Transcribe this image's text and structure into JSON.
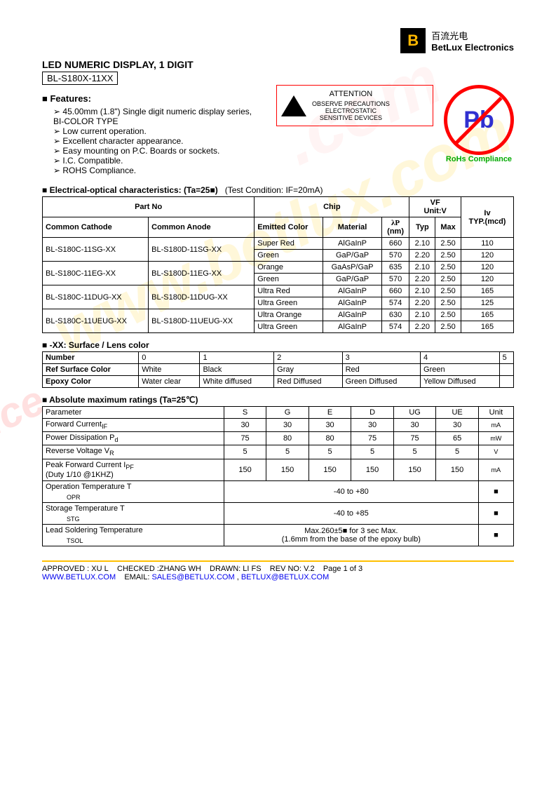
{
  "company": {
    "cn": "百流光电",
    "en": "BetLux Electronics"
  },
  "title": "LED NUMERIC DISPLAY, 1 DIGIT",
  "partNo": "BL-S180X-11XX",
  "featuresTitle": "Features:",
  "features": [
    "45.00mm (1.8\") Single digit numeric display series, BI-COLOR TYPE",
    "Low current operation.",
    "Excellent character appearance.",
    "Easy mounting on P.C. Boards or sockets.",
    "I.C. Compatible.",
    "ROHS Compliance."
  ],
  "esd": {
    "title": "ATTENTION",
    "line1": "OBSERVE PRECAUTIONS",
    "line2": "ELECTROSTATIC",
    "line3": "SENSITIVE DEVICES"
  },
  "pb": {
    "symbol": "Pb",
    "label": "RoHs Compliance"
  },
  "table1": {
    "title": "Electrical-optical characteristics: (Ta=25■)",
    "cond": "(Test Condition: IF=20mA)",
    "headers": {
      "partNo": "Part No",
      "chip": "Chip",
      "vf": "VF",
      "vfUnit": "Unit:V",
      "iv": "Iv",
      "cc": "Common Cathode",
      "ca": "Common Anode",
      "ec": "Emitted Color",
      "mat": "Material",
      "wl": "λP",
      "wlUnit": "(nm)",
      "typ": "Typ",
      "max": "Max",
      "ivTyp": "TYP.(mcd)"
    },
    "rows": [
      {
        "cc": "BL-S180C-11SG-XX",
        "ca": "BL-S180D-11SG-XX",
        "ec": "Super Red",
        "mat": "AlGaInP",
        "wl": "660",
        "typ": "2.10",
        "max": "2.50",
        "iv": "110"
      },
      {
        "cc": "",
        "ca": "",
        "ec": "Green",
        "mat": "GaP/GaP",
        "wl": "570",
        "typ": "2.20",
        "max": "2.50",
        "iv": "120"
      },
      {
        "cc": "BL-S180C-11EG-XX",
        "ca": "BL-S180D-11EG-XX",
        "ec": "Orange",
        "mat": "GaAsP/GaP",
        "wl": "635",
        "typ": "2.10",
        "max": "2.50",
        "iv": "120"
      },
      {
        "cc": "",
        "ca": "",
        "ec": "Green",
        "mat": "GaP/GaP",
        "wl": "570",
        "typ": "2.20",
        "max": "2.50",
        "iv": "120"
      },
      {
        "cc": "BL-S180C-11DUG-XX",
        "ca": "BL-S180D-11DUG-XX",
        "ec": "Ultra Red",
        "mat": "AlGaInP",
        "wl": "660",
        "typ": "2.10",
        "max": "2.50",
        "iv": "165"
      },
      {
        "cc": "",
        "ca": "",
        "ec": "Ultra Green",
        "mat": "AlGaInP",
        "wl": "574",
        "typ": "2.20",
        "max": "2.50",
        "iv": "125"
      },
      {
        "cc": "BL-S180C-11UEUG-XX",
        "ca": "BL-S180D-11UEUG-XX",
        "ec": "Ultra Orange",
        "mat": "AlGaInP",
        "wl": "630",
        "typ": "2.10",
        "max": "2.50",
        "iv": "165"
      },
      {
        "cc": "",
        "ca": "",
        "ec": "Ultra Green",
        "mat": "AlGaInP",
        "wl": "574",
        "typ": "2.20",
        "max": "2.50",
        "iv": "165"
      }
    ]
  },
  "table2": {
    "title": "-XX: Surface / Lens color",
    "h": {
      "num": "Number",
      "ref": "Ref Surface Color",
      "ep": "Epoxy Color"
    },
    "cols": [
      "0",
      "1",
      "2",
      "3",
      "4",
      "5"
    ],
    "ref": [
      "White",
      "Black",
      "Gray",
      "Red",
      "Green",
      ""
    ],
    "ep": [
      "Water clear",
      "White diffused",
      "Red Diffused",
      "Green Diffused",
      "Yellow Diffused",
      ""
    ]
  },
  "table3": {
    "title": "Absolute maximum ratings (Ta=25℃)",
    "h": {
      "param": "Parameter",
      "unit": "Unit"
    },
    "cols": [
      "S",
      "G",
      "E",
      "D",
      "UG",
      "UE"
    ],
    "rows": [
      {
        "p": "Forward Current",
        "sub": "IF",
        "v": [
          "30",
          "30",
          "30",
          "30",
          "30",
          "30"
        ],
        "u": "mA"
      },
      {
        "p": "Power Dissipation P",
        "sub": "d",
        "v": [
          "75",
          "80",
          "80",
          "75",
          "75",
          "65"
        ],
        "u": "mW"
      },
      {
        "p": "Reverse Voltage V",
        "sub": "R",
        "v": [
          "5",
          "5",
          "5",
          "5",
          "5",
          "5"
        ],
        "u": "V"
      },
      {
        "p": "Peak Forward Current I",
        "sub": "PF",
        "note": "(Duty 1/10 @1KHZ)",
        "v": [
          "150",
          "150",
          "150",
          "150",
          "150",
          "150"
        ],
        "u": "mA"
      }
    ],
    "span": [
      {
        "p": "Operation Temperature T",
        "sub": "OPR",
        "v": "-40 to +80",
        "u": "■"
      },
      {
        "p": "Storage Temperature T",
        "sub": "STG",
        "v": "-40 to +85",
        "u": "■"
      },
      {
        "p": "Lead Soldering Temperature",
        "sub": "TSOL",
        "v": "Max.260±5■  for 3 sec Max.",
        "v2": "(1.6mm from the base of the epoxy bulb)",
        "u": "■"
      }
    ]
  },
  "footer": {
    "approved": "APPROVED : XU L",
    "checked": "CHECKED :ZHANG WH",
    "drawn": "DRAWN: LI FS",
    "rev": "REV NO: V.2",
    "page": "Page 1 of 3",
    "url": "WWW.BETLUX.COM",
    "emailLabel": "EMAIL:",
    "email1": "SALES@BETLUX.COM",
    "email2": "BETLUX@BETLUX.COM"
  }
}
